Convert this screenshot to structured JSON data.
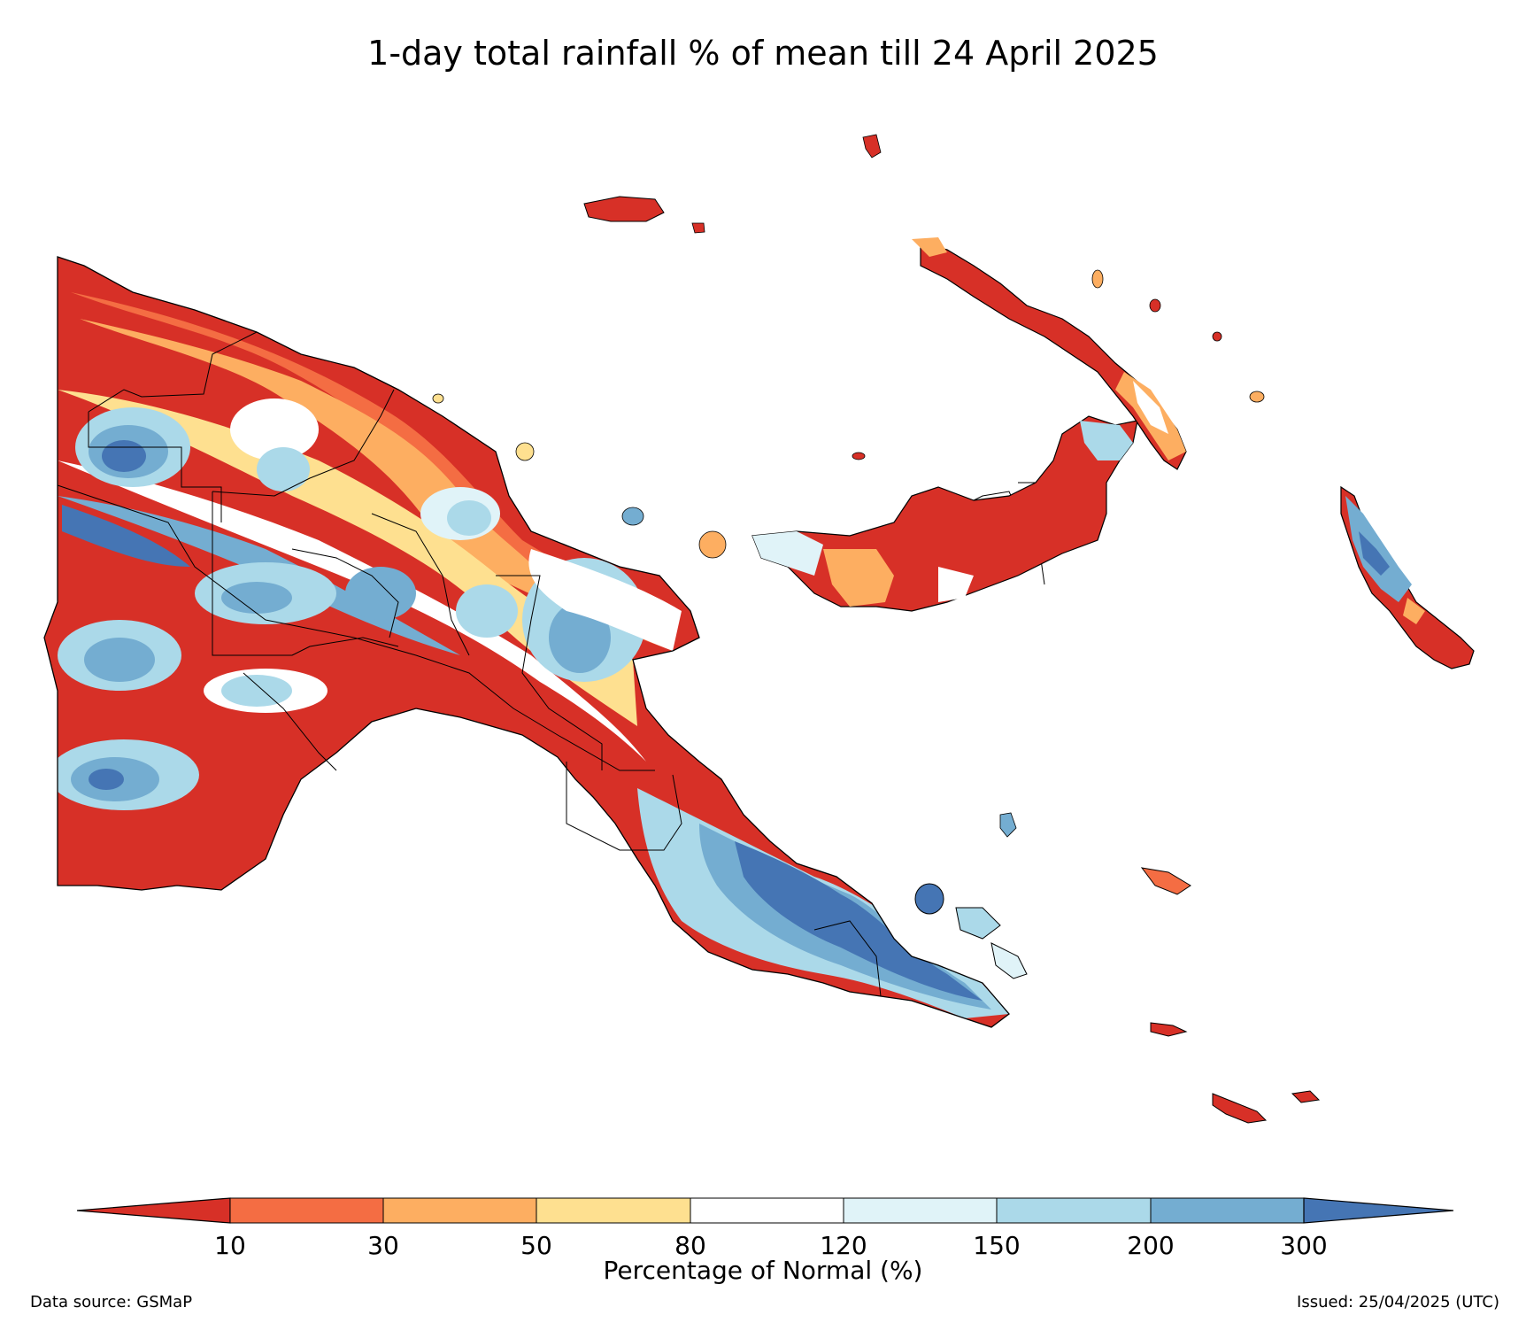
{
  "title": "1-day total rainfall % of mean till 24 April 2025",
  "legend": {
    "label": "Percentage of Normal (%)",
    "ticks": [
      "10",
      "30",
      "50",
      "80",
      "120",
      "150",
      "200",
      "300"
    ],
    "bins": [
      {
        "range": "<10",
        "color": "#d73027"
      },
      {
        "range": "10-30",
        "color": "#f46d43"
      },
      {
        "range": "30-50",
        "color": "#fdae61"
      },
      {
        "range": "50-80",
        "color": "#fee090"
      },
      {
        "range": "80-120",
        "color": "#ffffff"
      },
      {
        "range": "120-150",
        "color": "#e0f3f8"
      },
      {
        "range": "150-200",
        "color": "#abd9e9"
      },
      {
        "range": "200-300",
        "color": "#74add1"
      },
      {
        "range": ">300",
        "color": "#4575b4"
      }
    ]
  },
  "footer": {
    "source": "Data source: GSMaP",
    "issued": "Issued: 25/04/2025 (UTC)"
  }
}
